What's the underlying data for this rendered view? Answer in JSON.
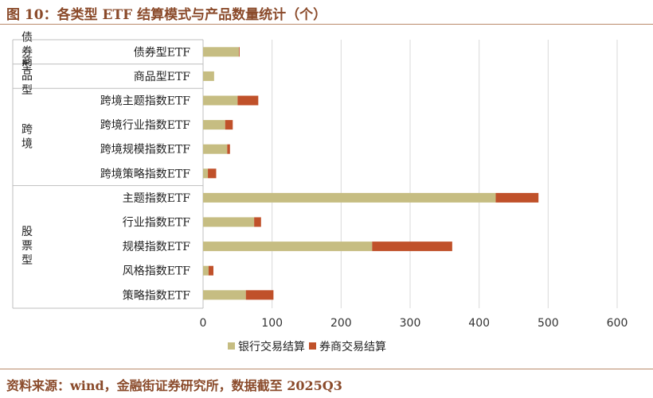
{
  "title": "图 10：各类型 ETF 结算模式与产品数量统计（个）",
  "source": "资料来源：wind，金融街证券研究所，数据截至 2025Q3",
  "colors": {
    "bank": "#c6bd82",
    "broker": "#c0512a",
    "grid": "#d9d9d9",
    "axis": "#bfbfbf"
  },
  "chart_data": {
    "type": "bar",
    "orientation": "horizontal",
    "stacked": true,
    "categories": [
      "债券型ETF",
      "商品型ETF",
      "跨境主题指数ETF",
      "跨境行业指数ETF",
      "跨境规模指数ETF",
      "跨境策略指数ETF",
      "主题指数ETF",
      "行业指数ETF",
      "规模指数ETF",
      "风格指数ETF",
      "策略指数ETF"
    ],
    "groups": [
      {
        "label": "债券型",
        "count": 1
      },
      {
        "label": "商品型",
        "count": 1
      },
      {
        "label": "跨境",
        "count": 4
      },
      {
        "label": "股票型",
        "count": 5
      }
    ],
    "series": [
      {
        "name": "银行交易结算",
        "values": [
          52,
          16,
          50,
          32,
          35,
          7,
          424,
          74,
          245,
          8,
          62
        ]
      },
      {
        "name": "券商交易结算",
        "values": [
          1,
          0,
          30,
          11,
          4,
          12,
          62,
          10,
          116,
          7,
          40
        ]
      }
    ],
    "xlim": [
      0,
      600
    ],
    "xticks": [
      0,
      100,
      200,
      300,
      400,
      500,
      600
    ],
    "grid": true,
    "legend": "bottom"
  }
}
